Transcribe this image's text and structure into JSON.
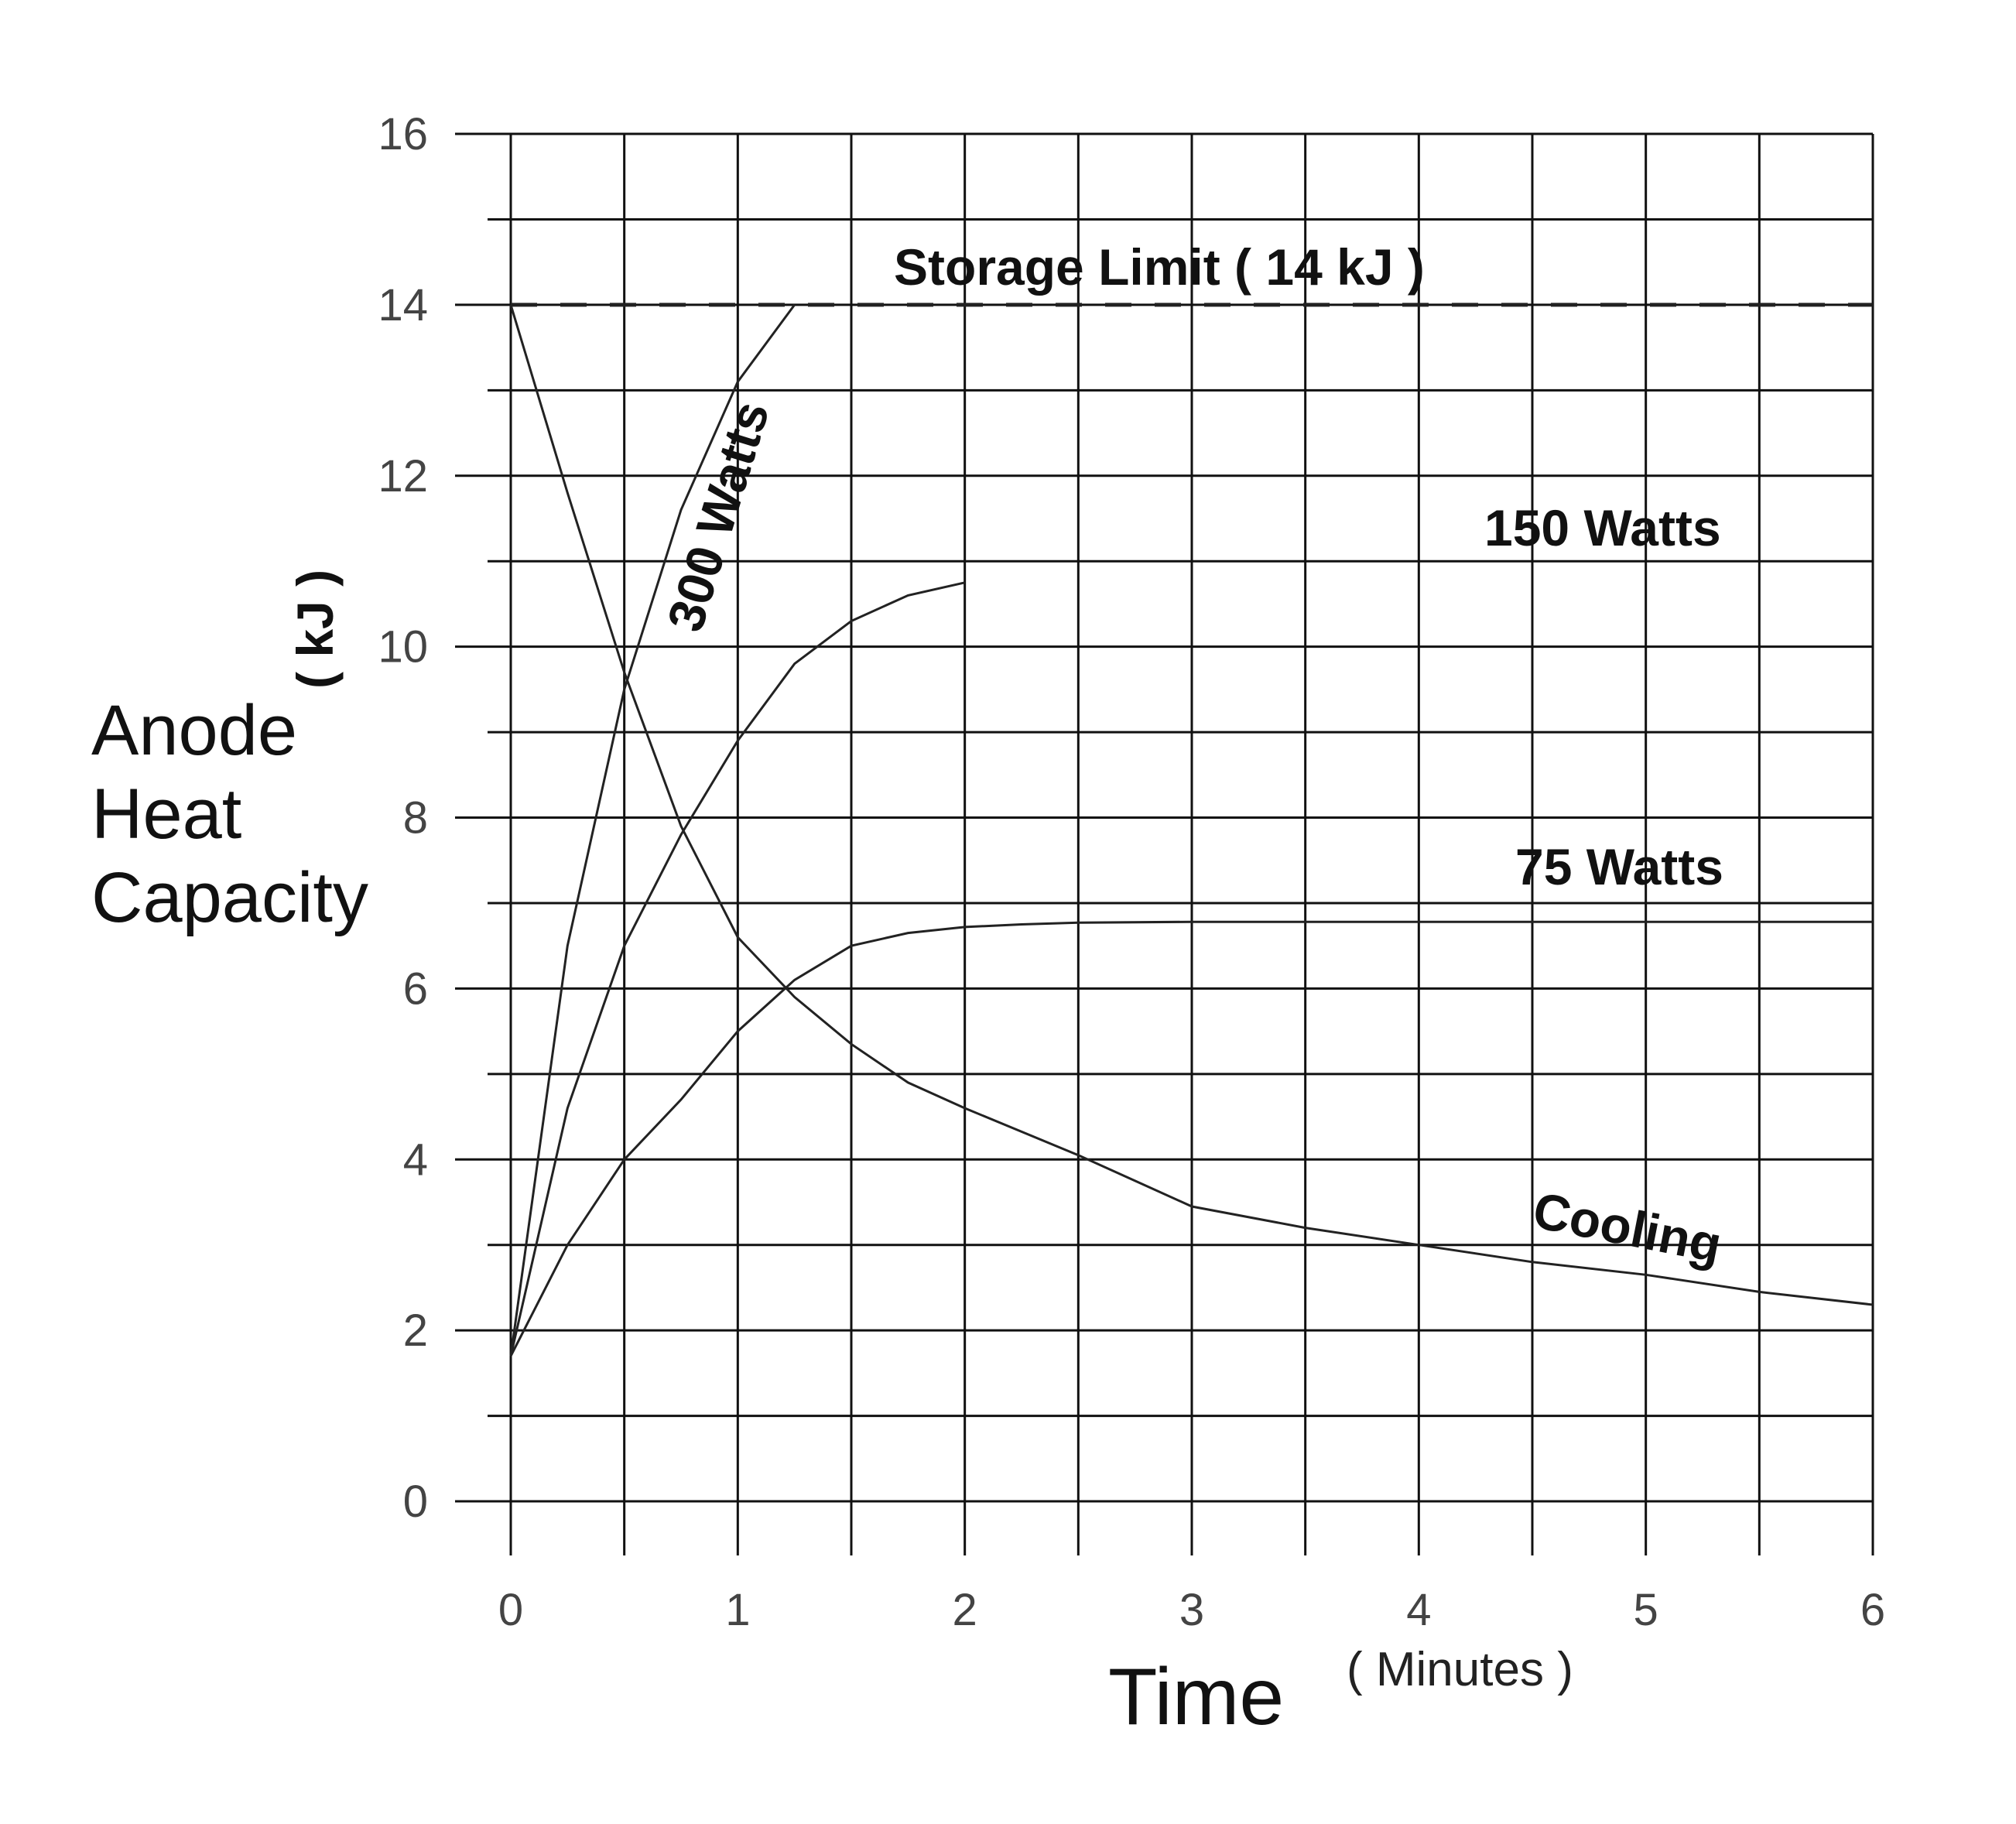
{
  "chart_data": {
    "type": "line",
    "title": "",
    "xlabel": "Time",
    "xlabel_unit": "( Minutes )",
    "ylabel": "Anode Heat Capacity",
    "ylabel_unit": "( kJ )",
    "xlim": [
      0,
      6
    ],
    "ylim": [
      0,
      16
    ],
    "x_ticks": [
      "0",
      "1",
      "2",
      "3",
      "4",
      "5",
      "6"
    ],
    "y_ticks": [
      "0",
      "2",
      "4",
      "6",
      "8",
      "10",
      "12",
      "14",
      "16"
    ],
    "grid": true,
    "legend": "none (series labeled directly on the plot)",
    "reference_line": {
      "label": "Storage Limit ( 14 kJ )",
      "y": 14,
      "style": "dashed"
    },
    "series": [
      {
        "name": "300 Watts",
        "x": [
          0,
          0.25,
          0.5,
          0.75,
          1.0,
          1.25
        ],
        "y": [
          1.7,
          6.5,
          9.5,
          11.6,
          13.1,
          14.0
        ]
      },
      {
        "name": "150 Watts",
        "x": [
          0,
          0.25,
          0.5,
          0.75,
          1.0,
          1.25,
          1.5,
          1.75,
          2.0
        ],
        "y": [
          1.7,
          4.6,
          6.5,
          7.8,
          8.9,
          9.8,
          10.3,
          10.6,
          10.75
        ]
      },
      {
        "name": "75 Watts",
        "x": [
          0,
          0.25,
          0.5,
          0.75,
          1.0,
          1.25,
          1.5,
          1.75,
          2.0,
          2.25,
          2.5,
          3,
          4,
          5,
          6
        ],
        "y": [
          1.7,
          3.0,
          4.0,
          4.7,
          5.5,
          6.1,
          6.5,
          6.65,
          6.72,
          6.75,
          6.77,
          6.78,
          6.78,
          6.78,
          6.78
        ]
      },
      {
        "name": "Cooling",
        "x": [
          0,
          0.25,
          0.5,
          0.75,
          1.0,
          1.25,
          1.5,
          1.75,
          2.0,
          2.5,
          3.0,
          3.5,
          4.0,
          4.5,
          5.0,
          5.5,
          6.0
        ],
        "y": [
          14.0,
          11.8,
          9.7,
          7.9,
          6.6,
          5.9,
          5.35,
          4.9,
          4.6,
          4.05,
          3.45,
          3.2,
          3.0,
          2.8,
          2.65,
          2.45,
          2.3
        ]
      }
    ]
  }
}
